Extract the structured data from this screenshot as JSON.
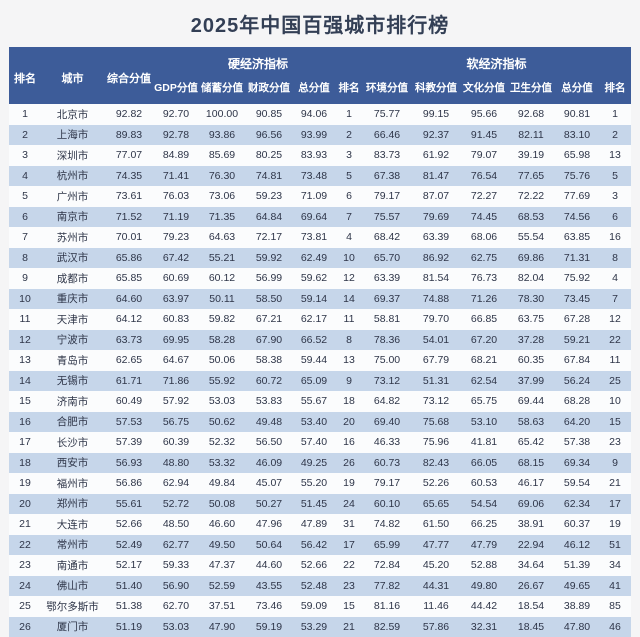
{
  "page": {
    "title": "2025年中国百强城市排行榜"
  },
  "colors": {
    "page_bg": "#f5f5f6",
    "title_color": "#333f55",
    "header_bg": "#3d5c99",
    "header_text": "#ffffff",
    "row_bg": "#fbfcfd",
    "stripe_bg": "#c6d6ea",
    "cell_text": "#2e3548"
  },
  "chart_data": {
    "type": "table",
    "title": "2025年中国百强城市排行榜",
    "fixed_columns": [
      "排名",
      "城市",
      "综合分值"
    ],
    "column_groups": [
      {
        "label": "硬经济指标",
        "span": 5
      },
      {
        "label": "软经济指标",
        "span": 6
      }
    ],
    "hard_columns": [
      "GDP分值",
      "储蓄分值",
      "财政分值",
      "总分值",
      "排名"
    ],
    "soft_columns": [
      "环境分值",
      "科教分值",
      "文化分值",
      "卫生分值",
      "总分值",
      "排名"
    ],
    "rows": [
      [
        "1",
        "北京市",
        "92.82",
        "92.70",
        "100.00",
        "90.85",
        "94.06",
        "1",
        "75.77",
        "99.15",
        "95.66",
        "92.68",
        "90.81",
        "1"
      ],
      [
        "2",
        "上海市",
        "89.83",
        "92.78",
        "93.86",
        "96.56",
        "93.99",
        "2",
        "66.46",
        "92.37",
        "91.45",
        "82.11",
        "83.10",
        "2"
      ],
      [
        "3",
        "深圳市",
        "77.07",
        "84.89",
        "85.69",
        "80.25",
        "83.93",
        "3",
        "83.73",
        "61.92",
        "79.07",
        "39.19",
        "65.98",
        "13"
      ],
      [
        "4",
        "杭州市",
        "74.35",
        "71.41",
        "76.30",
        "74.81",
        "73.48",
        "5",
        "67.38",
        "81.47",
        "76.54",
        "77.65",
        "75.76",
        "5"
      ],
      [
        "5",
        "广州市",
        "73.61",
        "76.03",
        "73.06",
        "59.23",
        "71.09",
        "6",
        "79.17",
        "87.07",
        "72.27",
        "72.22",
        "77.69",
        "3"
      ],
      [
        "6",
        "南京市",
        "71.52",
        "71.19",
        "71.35",
        "64.84",
        "69.64",
        "7",
        "75.57",
        "79.69",
        "74.45",
        "68.53",
        "74.56",
        "6"
      ],
      [
        "7",
        "苏州市",
        "70.01",
        "79.23",
        "64.63",
        "72.17",
        "73.81",
        "4",
        "68.42",
        "63.39",
        "68.06",
        "55.54",
        "63.85",
        "16"
      ],
      [
        "8",
        "武汉市",
        "65.86",
        "67.42",
        "55.21",
        "59.92",
        "62.49",
        "10",
        "65.70",
        "86.92",
        "62.75",
        "69.86",
        "71.31",
        "8"
      ],
      [
        "9",
        "成都市",
        "65.85",
        "60.69",
        "60.12",
        "56.99",
        "59.62",
        "12",
        "63.39",
        "81.54",
        "76.73",
        "82.04",
        "75.92",
        "4"
      ],
      [
        "10",
        "重庆市",
        "64.60",
        "63.97",
        "50.11",
        "58.50",
        "59.14",
        "14",
        "69.37",
        "74.88",
        "71.26",
        "78.30",
        "73.45",
        "7"
      ],
      [
        "11",
        "天津市",
        "64.12",
        "60.83",
        "59.82",
        "67.21",
        "62.17",
        "11",
        "58.81",
        "79.70",
        "66.85",
        "63.75",
        "67.28",
        "12"
      ],
      [
        "12",
        "宁波市",
        "63.73",
        "69.95",
        "58.28",
        "67.90",
        "66.52",
        "8",
        "78.36",
        "54.01",
        "67.20",
        "37.28",
        "59.21",
        "22"
      ],
      [
        "13",
        "青岛市",
        "62.65",
        "64.67",
        "50.06",
        "58.38",
        "59.44",
        "13",
        "75.00",
        "67.79",
        "68.21",
        "60.35",
        "67.84",
        "11"
      ],
      [
        "14",
        "无锡市",
        "61.71",
        "71.86",
        "55.92",
        "60.72",
        "65.09",
        "9",
        "73.12",
        "51.31",
        "62.54",
        "37.99",
        "56.24",
        "25"
      ],
      [
        "15",
        "济南市",
        "60.49",
        "57.92",
        "53.03",
        "53.83",
        "55.67",
        "18",
        "64.82",
        "73.12",
        "65.75",
        "69.44",
        "68.28",
        "10"
      ],
      [
        "16",
        "合肥市",
        "57.53",
        "56.75",
        "50.62",
        "49.48",
        "53.40",
        "20",
        "69.40",
        "75.68",
        "53.10",
        "58.63",
        "64.20",
        "15"
      ],
      [
        "17",
        "长沙市",
        "57.39",
        "60.39",
        "52.32",
        "56.50",
        "57.40",
        "16",
        "46.33",
        "75.96",
        "41.81",
        "65.42",
        "57.38",
        "23"
      ],
      [
        "18",
        "西安市",
        "56.93",
        "48.80",
        "53.32",
        "46.09",
        "49.25",
        "26",
        "60.73",
        "82.43",
        "66.05",
        "68.15",
        "69.34",
        "9"
      ],
      [
        "19",
        "福州市",
        "56.86",
        "62.94",
        "49.84",
        "45.07",
        "55.20",
        "19",
        "79.17",
        "52.26",
        "60.53",
        "46.17",
        "59.54",
        "21"
      ],
      [
        "20",
        "郑州市",
        "55.61",
        "52.72",
        "50.08",
        "50.27",
        "51.45",
        "24",
        "60.10",
        "65.65",
        "54.54",
        "69.06",
        "62.34",
        "17"
      ],
      [
        "21",
        "大连市",
        "52.66",
        "48.50",
        "46.60",
        "47.96",
        "47.89",
        "31",
        "74.82",
        "61.50",
        "66.25",
        "38.91",
        "60.37",
        "19"
      ],
      [
        "22",
        "常州市",
        "52.49",
        "62.77",
        "49.50",
        "50.64",
        "56.42",
        "17",
        "65.99",
        "47.77",
        "47.79",
        "22.94",
        "46.12",
        "51"
      ],
      [
        "23",
        "南通市",
        "52.17",
        "59.33",
        "47.37",
        "44.60",
        "52.66",
        "22",
        "72.84",
        "45.20",
        "52.88",
        "34.64",
        "51.39",
        "34"
      ],
      [
        "24",
        "佛山市",
        "51.40",
        "56.90",
        "52.59",
        "43.55",
        "52.48",
        "23",
        "77.82",
        "44.31",
        "49.80",
        "26.67",
        "49.65",
        "41"
      ],
      [
        "25",
        "鄂尔多斯市",
        "51.38",
        "62.70",
        "37.51",
        "73.46",
        "59.09",
        "15",
        "81.16",
        "11.46",
        "44.42",
        "18.54",
        "38.89",
        "85"
      ],
      [
        "26",
        "厦门市",
        "51.19",
        "53.03",
        "47.90",
        "59.19",
        "53.29",
        "21",
        "82.59",
        "57.86",
        "32.31",
        "18.45",
        "47.80",
        "46"
      ]
    ]
  }
}
